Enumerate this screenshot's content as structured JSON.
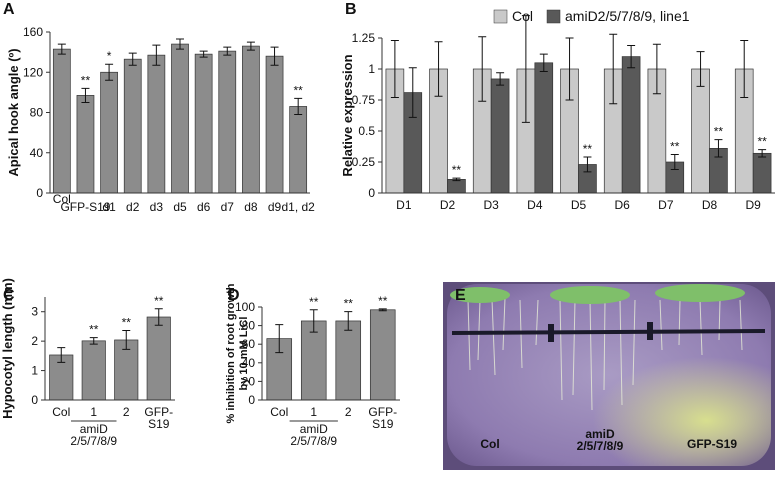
{
  "chart_data": [
    {
      "type": "bar",
      "panel": "A",
      "ylabel": "Apical hook angle (º)",
      "categories": [
        "Col",
        "GFP-S19",
        "d1",
        "d2",
        "d3",
        "d5",
        "d6",
        "d7",
        "d8",
        "d9",
        "d1, d2"
      ],
      "values": [
        143,
        97,
        120,
        133,
        137,
        148,
        138,
        141,
        146,
        136,
        86
      ],
      "errors": [
        5,
        7,
        8,
        6,
        10,
        5,
        3,
        4,
        4,
        9,
        8
      ],
      "annotations": [
        null,
        "**",
        "*",
        null,
        null,
        null,
        null,
        null,
        null,
        null,
        "**"
      ],
      "color": "#8c8c8c",
      "ylim": [
        0,
        160
      ],
      "yticks": [
        0,
        40,
        80,
        120,
        160
      ]
    },
    {
      "type": "bar",
      "panel": "B",
      "ylabel": "Relative expression",
      "categories": [
        "D1",
        "D2",
        "D3",
        "D4",
        "D5",
        "D6",
        "D7",
        "D8",
        "D9"
      ],
      "series": [
        {
          "name": "Col",
          "color": "#c9c9c9",
          "values": [
            1,
            1,
            1,
            1,
            1,
            1,
            1,
            1,
            1
          ],
          "errors": [
            0.23,
            0.22,
            0.26,
            0.43,
            0.25,
            0.28,
            0.2,
            0.14,
            0.23
          ]
        },
        {
          "name": "amiD2/5/7/8/9, line1",
          "color": "#595959",
          "values": [
            0.81,
            0.11,
            0.92,
            1.05,
            0.23,
            1.1,
            0.25,
            0.36,
            0.32
          ],
          "errors": [
            0.2,
            0.01,
            0.05,
            0.07,
            0.06,
            0.09,
            0.06,
            0.07,
            0.03
          ],
          "annotations": [
            null,
            "**",
            null,
            null,
            "**",
            null,
            "**",
            "**",
            "**"
          ]
        }
      ],
      "ylim": [
        0,
        1.25
      ],
      "yticks": [
        0,
        0.25,
        0.5,
        0.75,
        1,
        1.25
      ],
      "legend": "top"
    },
    {
      "type": "bar",
      "panel": "C",
      "ylabel": "Hypocotyl length (mm)",
      "categories": [
        "Col",
        "1",
        "2",
        "GFP-\nS19"
      ],
      "group_label": "amiD\n2/5/7/8/9",
      "values": [
        1.53,
        2.01,
        2.04,
        2.82
      ],
      "errors": [
        0.25,
        0.11,
        0.32,
        0.28
      ],
      "annotations": [
        null,
        "**",
        "**",
        "**"
      ],
      "color": "#8c8c8c",
      "ylim": [
        0,
        3.5
      ],
      "yticks": [
        0,
        1,
        2,
        3
      ]
    },
    {
      "type": "bar",
      "panel": "D",
      "ylabel": "% inhibition of root growth\nby 10 mM LiCl",
      "categories": [
        "Col",
        "1",
        "2",
        "GFP-\nS19"
      ],
      "group_label": "amiD\n2/5/7/8/9",
      "values": [
        66,
        85,
        85,
        97
      ],
      "errors": [
        15,
        12,
        10,
        1
      ],
      "annotations": [
        null,
        "**",
        "**",
        "**"
      ],
      "color": "#8c8c8c",
      "ylim": [
        0,
        100
      ],
      "yticks": [
        0,
        20,
        40,
        60,
        80,
        100
      ]
    },
    {
      "type": "image",
      "panel": "E",
      "labels": [
        "Col",
        "amiD\n2/5/7/8/9",
        "GFP-S19"
      ]
    }
  ]
}
